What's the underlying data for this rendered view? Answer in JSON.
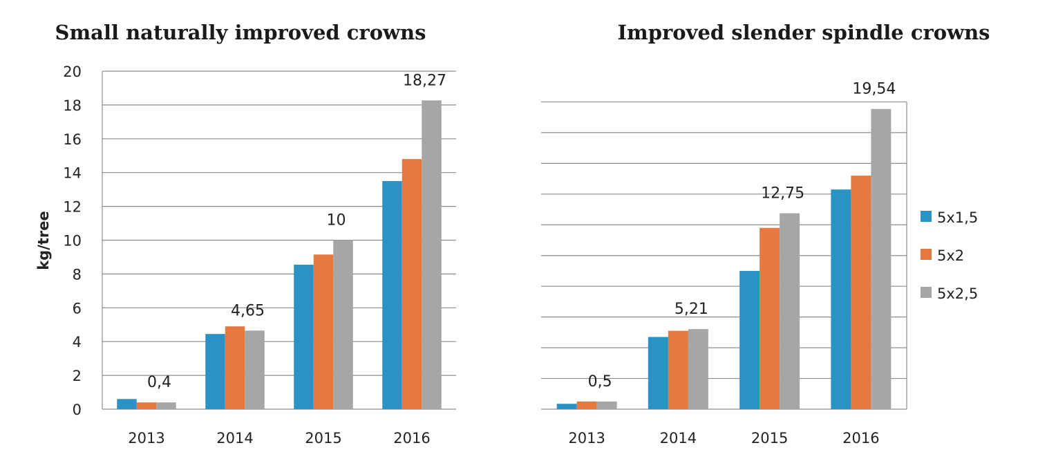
{
  "chart_data": [
    {
      "type": "bar",
      "title": "Small naturally improved crowns",
      "ylabel": "kg/tree",
      "xlabel": "",
      "ylim": [
        0,
        20
      ],
      "yticks": [
        "0",
        "2",
        "4",
        "6",
        "8",
        "10",
        "12",
        "14",
        "16",
        "18",
        "20"
      ],
      "grid": true,
      "categories": [
        "2013",
        "2014",
        "2015",
        "2016"
      ],
      "series": [
        {
          "name": "5x1,5",
          "color": "#2a93c6",
          "values": [
            0.6,
            4.45,
            8.55,
            13.5
          ]
        },
        {
          "name": "5x2",
          "color": "#e6793f",
          "values": [
            0.4,
            4.9,
            9.15,
            14.8
          ]
        },
        {
          "name": "5x2,5",
          "color": "#a6a6a6",
          "values": [
            0.4,
            4.65,
            10,
            18.27
          ]
        }
      ],
      "data_labels": [
        "0,4",
        "4,65",
        "10",
        "18,27"
      ]
    },
    {
      "type": "bar",
      "title": "Improved slender spindle crowns",
      "ylabel": "",
      "xlabel": "",
      "ylim": [
        0,
        22
      ],
      "yticks": [],
      "grid": true,
      "categories": [
        "2013",
        "2014",
        "2015",
        "2016"
      ],
      "series": [
        {
          "name": "5x1,5",
          "color": "#2a93c6",
          "values": [
            0.35,
            4.7,
            9.0,
            14.3
          ]
        },
        {
          "name": "5x2",
          "color": "#e6793f",
          "values": [
            0.5,
            5.1,
            11.8,
            15.2
          ]
        },
        {
          "name": "5x2,5",
          "color": "#a6a6a6",
          "values": [
            0.5,
            5.21,
            12.75,
            19.54
          ]
        }
      ],
      "data_labels": [
        "0,5",
        "5,21",
        "12,75",
        "19,54"
      ]
    }
  ],
  "legend": {
    "placement": "right",
    "items": [
      "5x1,5",
      "5x2",
      "5x2,5"
    ]
  }
}
